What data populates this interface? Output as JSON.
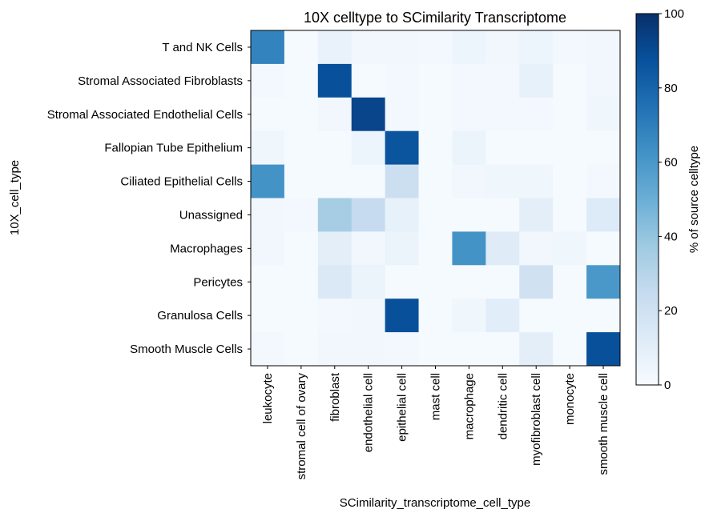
{
  "chart_data": {
    "type": "heatmap",
    "title": "10X celltype to SCimilarity Transcriptome",
    "xlabel": "SCimilarity_transcriptome_cell_type",
    "ylabel": "10X_cell_type",
    "colorbar_label": "% of source celltype",
    "colormap": "Blues",
    "vmin": 0,
    "vmax": 100,
    "colorbar_ticks": [
      0,
      20,
      40,
      60,
      80,
      100
    ],
    "x_categories": [
      "leukocyte",
      "stromal cell of ovary",
      "fibroblast",
      "endothelial cell",
      "epithelial cell",
      "mast cell",
      "macrophage",
      "dendritic cell",
      "myofibroblast cell",
      "monocyte",
      "smooth muscle cell"
    ],
    "y_categories": [
      "T and NK Cells",
      "Stromal Associated Fibroblasts",
      "Stromal Associated Endothelial Cells",
      "Fallopian Tube Epithelium",
      "Ciliated Epithelial Cells",
      "Unassigned",
      "Macrophages",
      "Pericytes",
      "Granulosa Cells",
      "Smooth Muscle Cells"
    ],
    "values": [
      [
        68,
        1,
        7,
        3,
        3,
        2,
        5,
        3,
        5,
        2,
        3
      ],
      [
        2,
        1,
        88,
        1,
        2,
        1,
        2,
        2,
        8,
        1,
        3
      ],
      [
        1,
        1,
        3,
        92,
        2,
        1,
        2,
        2,
        2,
        1,
        4
      ],
      [
        4,
        1,
        1,
        5,
        86,
        1,
        6,
        1,
        1,
        1,
        1
      ],
      [
        62,
        1,
        1,
        1,
        22,
        1,
        3,
        4,
        4,
        1,
        2
      ],
      [
        3,
        2,
        35,
        25,
        8,
        1,
        1,
        1,
        10,
        1,
        13
      ],
      [
        3,
        1,
        10,
        3,
        6,
        1,
        62,
        12,
        3,
        4,
        1
      ],
      [
        1,
        1,
        14,
        6,
        1,
        1,
        1,
        1,
        20,
        1,
        60
      ],
      [
        1,
        1,
        2,
        3,
        88,
        1,
        4,
        11,
        1,
        1,
        1
      ],
      [
        2,
        1,
        3,
        3,
        2,
        1,
        1,
        1,
        10,
        1,
        88
      ]
    ]
  }
}
